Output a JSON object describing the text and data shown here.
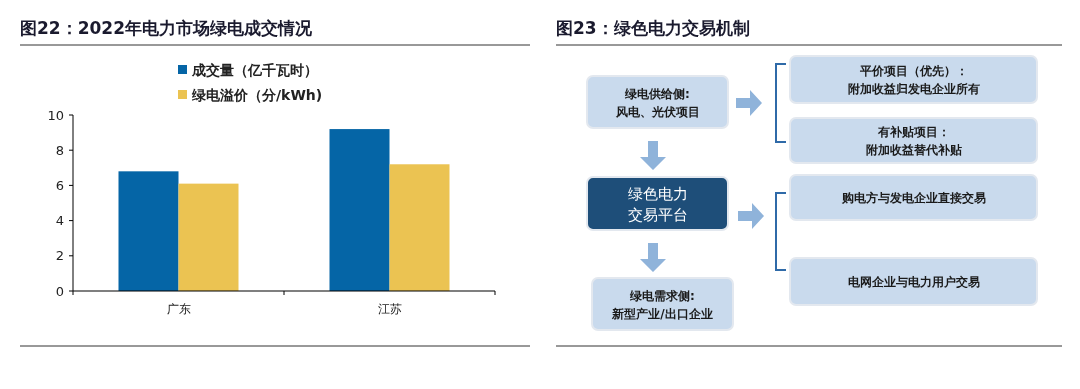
{
  "chart_data": [
    {
      "type": "bar",
      "title": "图22：2022年电力市场绿电成交情况",
      "categories": [
        "广东",
        "江苏"
      ],
      "series": [
        {
          "name": "成交量（亿千瓦时）",
          "color": "#0565a6",
          "values": [
            6.8,
            9.2
          ]
        },
        {
          "name": "绿电溢价（分/kWh)",
          "color": "#ebc352",
          "values": [
            6.1,
            7.2
          ]
        }
      ],
      "ylim": [
        0,
        10
      ],
      "yticks": [
        0,
        2,
        4,
        6,
        8,
        10
      ],
      "legend": "top"
    },
    {
      "type": "other",
      "title": "图23：绿色电力交易机制",
      "annotations": [
        "绿电供给侧:",
        "风电、光伏项目",
        "绿色电力",
        "交易平台",
        "绿电需求侧:",
        "新型产业/出口企业",
        "平价项目（优先）：",
        "附加收益归发电企业所有",
        "有补贴项目：",
        "附加收益替代补贴",
        "购电方与发电企业直接交易",
        "电网企业与电力用户交易"
      ]
    }
  ]
}
